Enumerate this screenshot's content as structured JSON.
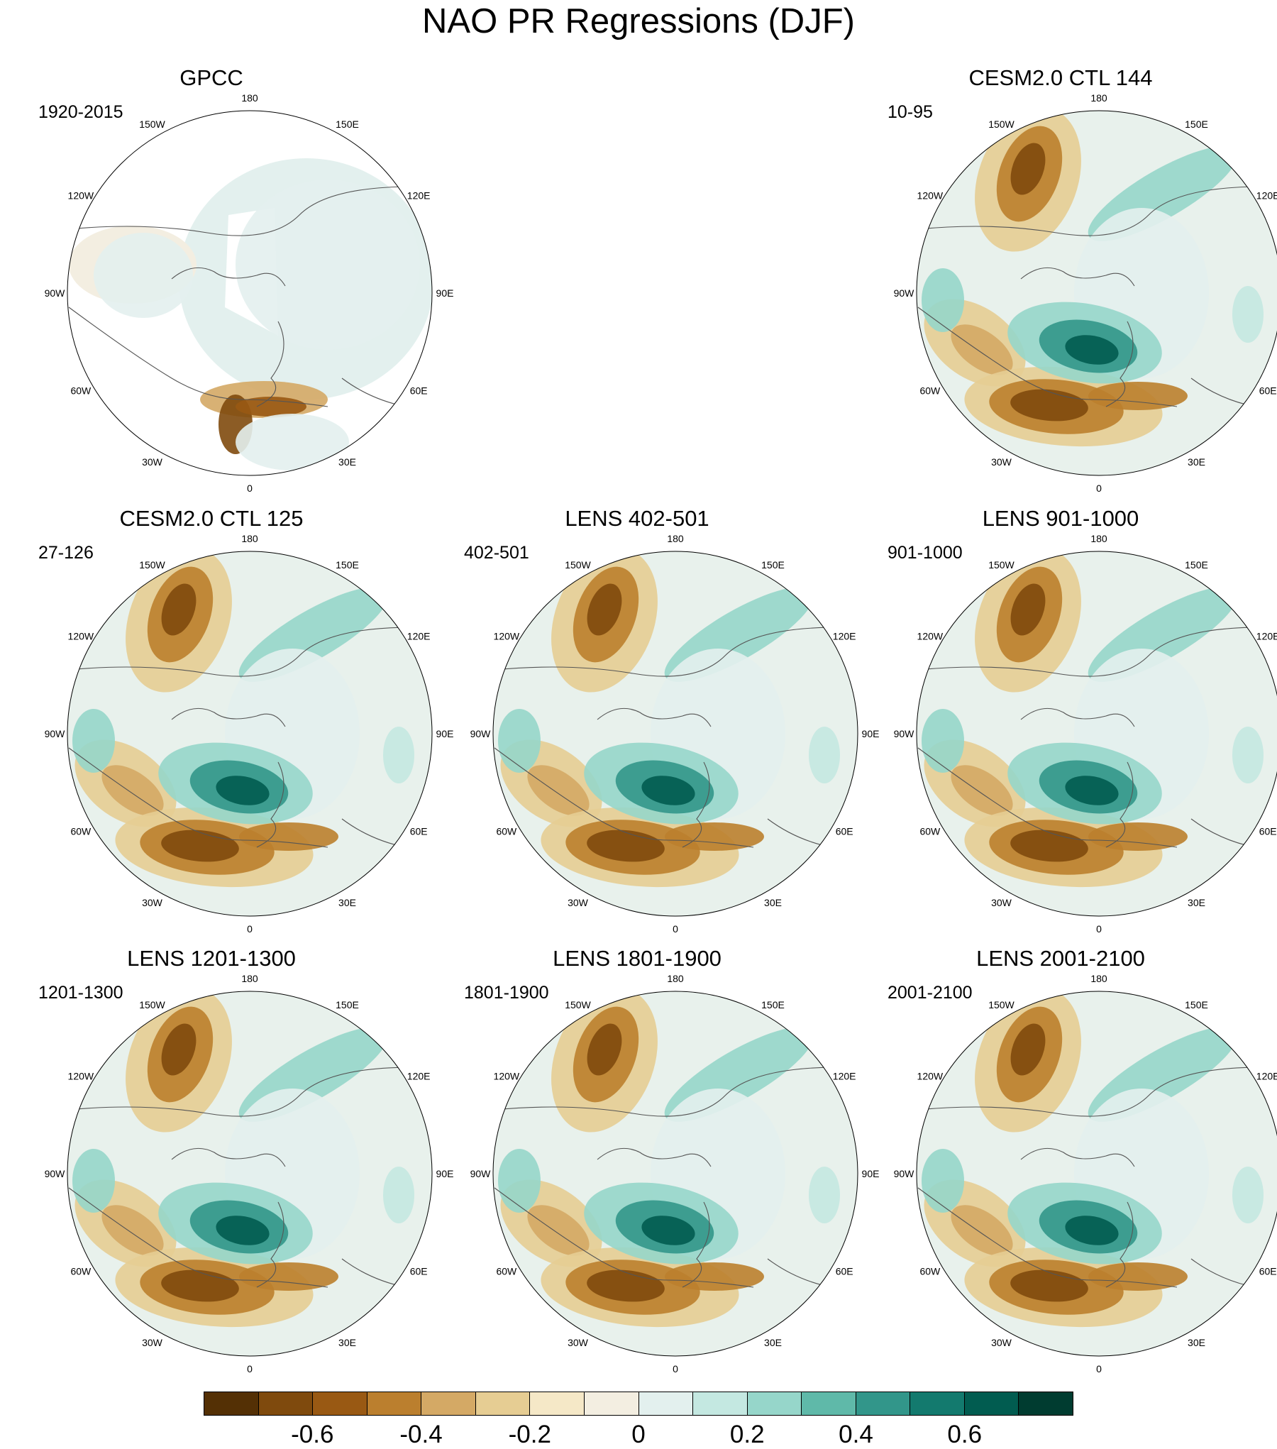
{
  "title": "NAO PR Regressions (DJF)",
  "lon_labels": [
    "180",
    "150E",
    "120E",
    "90E",
    "60E",
    "30E",
    "0",
    "30W",
    "60W",
    "90W",
    "120W",
    "150W"
  ],
  "panels": [
    {
      "title": "GPCC",
      "period": "1920-2015",
      "style": "obs"
    },
    {
      "title": "",
      "period": "",
      "style": "empty"
    },
    {
      "title": "CESM2.0 CTL 144",
      "period": "10-95",
      "style": "model"
    },
    {
      "title": "CESM2.0 CTL 125",
      "period": "27-126",
      "style": "model"
    },
    {
      "title": "LENS 402-501",
      "period": "402-501",
      "style": "model"
    },
    {
      "title": "LENS 901-1000",
      "period": "901-1000",
      "style": "model"
    },
    {
      "title": "LENS 1201-1300",
      "period": "1201-1300",
      "style": "model"
    },
    {
      "title": "LENS 1801-1900",
      "period": "1801-1900",
      "style": "model"
    },
    {
      "title": "LENS 2001-2100",
      "period": "2001-2100",
      "style": "model"
    }
  ],
  "colorbar": {
    "colors": [
      "#543005",
      "#7f4a0d",
      "#995913",
      "#bb7f2e",
      "#d4a965",
      "#e6cd93",
      "#f5e8c7",
      "#f3eee1",
      "#e3f0ee",
      "#c4e8e1",
      "#96d6ca",
      "#5fb9a9",
      "#32968a",
      "#137a6e",
      "#015c50",
      "#003c30"
    ],
    "labels": [
      "-0.6",
      "-0.4",
      "-0.2",
      "0",
      "0.2",
      "0.4",
      "0.6"
    ],
    "label_values": [
      -0.6,
      -0.4,
      -0.2,
      0,
      0.2,
      0.4,
      0.6
    ],
    "min": -0.8,
    "max": 0.8
  }
}
